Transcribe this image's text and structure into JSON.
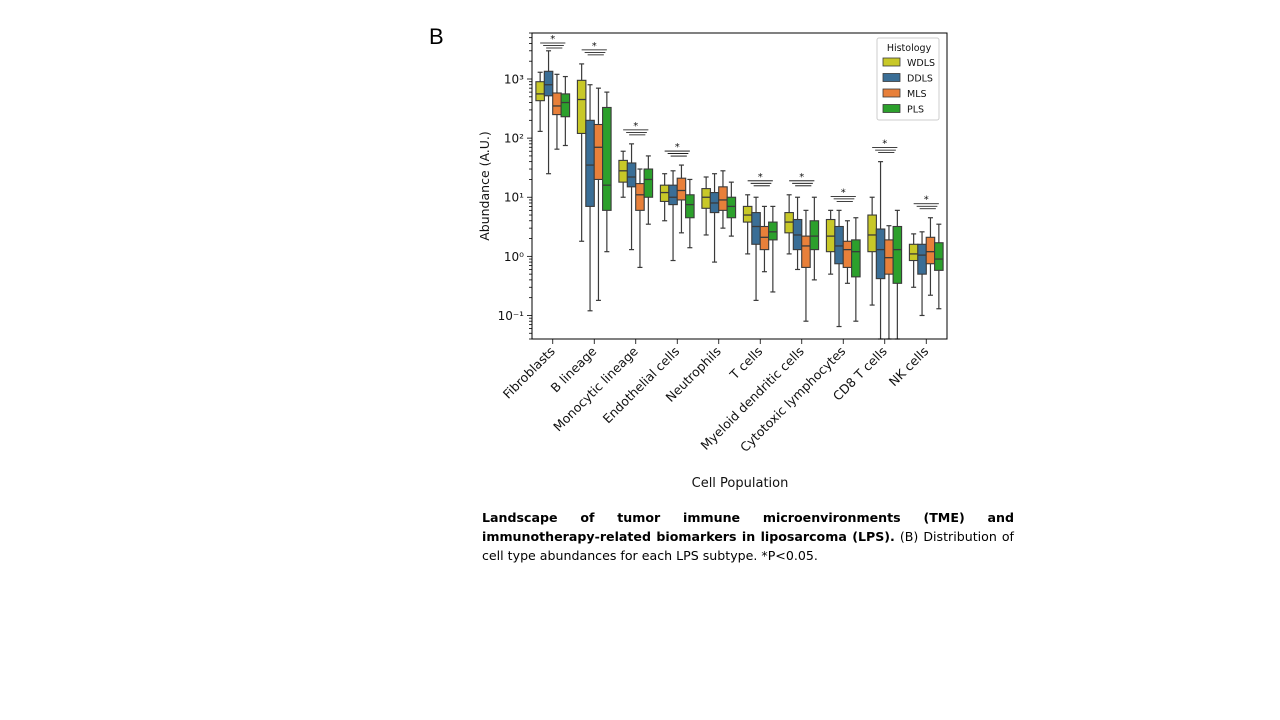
{
  "panel_label": "B",
  "caption": {
    "bold": "Landscape of tumor immune microenvironments (TME) and immunotherapy-related biomarkers in liposarcoma (LPS).",
    "text": " (B) Distribution of cell type abundances for each LPS subtype. *P<0.05."
  },
  "chart_data": {
    "type": "box",
    "xlabel": "Cell Population",
    "ylabel": "Abundance (A.U.)",
    "yscale": "log",
    "ylim": [
      0.04,
      6000
    ],
    "yticks": [
      {
        "value": 1000,
        "label": "10³"
      },
      {
        "value": 100,
        "label": "10²"
      },
      {
        "value": 10,
        "label": "10¹"
      },
      {
        "value": 1,
        "label": "10⁰"
      },
      {
        "value": 0.1,
        "label": "10⁻¹"
      }
    ],
    "legend": {
      "title": "Histology",
      "position": "top-right"
    },
    "series": [
      {
        "name": "WDLS",
        "color": "#c8c828"
      },
      {
        "name": "DDLS",
        "color": "#3a6e96"
      },
      {
        "name": "MLS",
        "color": "#e8803a"
      },
      {
        "name": "PLS",
        "color": "#2ca02c"
      }
    ],
    "significance_marker": "*",
    "categories": [
      {
        "label": "Fibroblasts",
        "significant": true,
        "boxes": [
          {
            "q1": 430,
            "median": 560,
            "q3": 900,
            "wlo": 130,
            "whi": 1300
          },
          {
            "q1": 520,
            "median": 800,
            "q3": 1350,
            "wlo": 25,
            "whi": 3000
          },
          {
            "q1": 250,
            "median": 350,
            "q3": 580,
            "wlo": 65,
            "whi": 1200
          },
          {
            "q1": 230,
            "median": 400,
            "q3": 560,
            "wlo": 75,
            "whi": 1100
          }
        ]
      },
      {
        "label": "B lineage",
        "significant": true,
        "boxes": [
          {
            "q1": 120,
            "median": 450,
            "q3": 950,
            "wlo": 1.8,
            "whi": 1800
          },
          {
            "q1": 7,
            "median": 35,
            "q3": 200,
            "wlo": 0.12,
            "whi": 800
          },
          {
            "q1": 20,
            "median": 70,
            "q3": 170,
            "wlo": 0.18,
            "whi": 700
          },
          {
            "q1": 6,
            "median": 16,
            "q3": 330,
            "wlo": 1.2,
            "whi": 600
          }
        ]
      },
      {
        "label": "Monocytic lineage",
        "significant": true,
        "boxes": [
          {
            "q1": 18,
            "median": 28,
            "q3": 42,
            "wlo": 10,
            "whi": 60
          },
          {
            "q1": 15,
            "median": 22,
            "q3": 38,
            "wlo": 1.3,
            "whi": 80
          },
          {
            "q1": 6,
            "median": 11,
            "q3": 17,
            "wlo": 0.65,
            "whi": 30
          },
          {
            "q1": 10,
            "median": 20,
            "q3": 30,
            "wlo": 3.5,
            "whi": 50
          }
        ]
      },
      {
        "label": "Endothelial cells",
        "significant": true,
        "boxes": [
          {
            "q1": 8.5,
            "median": 12,
            "q3": 16,
            "wlo": 4,
            "whi": 25
          },
          {
            "q1": 7.5,
            "median": 10,
            "q3": 16,
            "wlo": 0.85,
            "whi": 28
          },
          {
            "q1": 9,
            "median": 13,
            "q3": 21,
            "wlo": 2.5,
            "whi": 35
          },
          {
            "q1": 4.5,
            "median": 7.5,
            "q3": 11,
            "wlo": 1.4,
            "whi": 20
          }
        ]
      },
      {
        "label": "Neutrophils",
        "significant": false,
        "boxes": [
          {
            "q1": 6.5,
            "median": 10,
            "q3": 14,
            "wlo": 2.3,
            "whi": 22
          },
          {
            "q1": 5.5,
            "median": 8,
            "q3": 12,
            "wlo": 0.8,
            "whi": 25
          },
          {
            "q1": 6,
            "median": 9,
            "q3": 15,
            "wlo": 3,
            "whi": 28
          },
          {
            "q1": 4.5,
            "median": 7,
            "q3": 10,
            "wlo": 2.2,
            "whi": 18
          }
        ]
      },
      {
        "label": "T cells",
        "significant": true,
        "boxes": [
          {
            "q1": 3.8,
            "median": 5,
            "q3": 7,
            "wlo": 1.1,
            "whi": 11
          },
          {
            "q1": 1.6,
            "median": 3.2,
            "q3": 5.5,
            "wlo": 0.18,
            "whi": 10
          },
          {
            "q1": 1.3,
            "median": 2.1,
            "q3": 3.2,
            "wlo": 0.55,
            "whi": 7
          },
          {
            "q1": 1.9,
            "median": 2.6,
            "q3": 3.8,
            "wlo": 0.25,
            "whi": 7
          }
        ]
      },
      {
        "label": "Myeloid dendritic cells",
        "significant": true,
        "boxes": [
          {
            "q1": 2.5,
            "median": 3.8,
            "q3": 5.5,
            "wlo": 1.1,
            "whi": 11
          },
          {
            "q1": 1.3,
            "median": 2.3,
            "q3": 4.2,
            "wlo": 0.6,
            "whi": 10
          },
          {
            "q1": 0.65,
            "median": 1.5,
            "q3": 2.2,
            "wlo": 0.08,
            "whi": 6
          },
          {
            "q1": 1.3,
            "median": 2.2,
            "q3": 4,
            "wlo": 0.4,
            "whi": 10
          }
        ]
      },
      {
        "label": "Cytotoxic lymphocytes",
        "significant": true,
        "boxes": [
          {
            "q1": 1.2,
            "median": 2.2,
            "q3": 4.2,
            "wlo": 0.5,
            "whi": 6
          },
          {
            "q1": 0.75,
            "median": 1.5,
            "q3": 3.2,
            "wlo": 0.065,
            "whi": 6
          },
          {
            "q1": 0.65,
            "median": 1.3,
            "q3": 1.8,
            "wlo": 0.35,
            "whi": 4
          },
          {
            "q1": 0.45,
            "median": 1.2,
            "q3": 1.9,
            "wlo": 0.08,
            "whi": 4.5
          }
        ]
      },
      {
        "label": "CD8 T cells",
        "significant": true,
        "boxes": [
          {
            "q1": 1.2,
            "median": 2.3,
            "q3": 5,
            "wlo": 0.15,
            "whi": 10
          },
          {
            "q1": 0.42,
            "median": 1.3,
            "q3": 2.9,
            "wlo": 0.02,
            "whi": 40
          },
          {
            "q1": 0.5,
            "median": 0.95,
            "q3": 1.9,
            "wlo": 0.02,
            "whi": 3.3
          },
          {
            "q1": 0.35,
            "median": 1.3,
            "q3": 3.2,
            "wlo": 0.02,
            "whi": 6
          }
        ]
      },
      {
        "label": "NK cells",
        "significant": true,
        "boxes": [
          {
            "q1": 0.85,
            "median": 1.1,
            "q3": 1.6,
            "wlo": 0.3,
            "whi": 2.4
          },
          {
            "q1": 0.5,
            "median": 1.05,
            "q3": 1.6,
            "wlo": 0.1,
            "whi": 2.6
          },
          {
            "q1": 0.75,
            "median": 1.2,
            "q3": 2.1,
            "wlo": 0.22,
            "whi": 4.5
          },
          {
            "q1": 0.58,
            "median": 0.9,
            "q3": 1.7,
            "wlo": 0.13,
            "whi": 3.5
          }
        ]
      }
    ]
  }
}
